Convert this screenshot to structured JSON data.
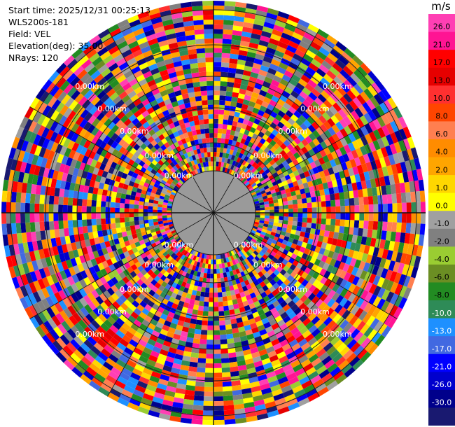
{
  "header": {
    "start_time": "Start time: 2025/12/31 00:25:13",
    "instrument": "WLS200s-181",
    "field": "Field: VEL",
    "elevation": "Elevation(deg): 35.00",
    "nrays": "NRays: 120"
  },
  "chart_data": {
    "type": "heatmap",
    "projection": "polar-ppi",
    "nrays": 120,
    "range_rings_km": [
      1,
      2,
      3,
      4,
      5
    ],
    "ring_label_text": "0.00km",
    "colorbar": {
      "unit": "m/s",
      "levels": [
        "26.0",
        "21.0",
        "17.0",
        "13.0",
        "10.0",
        "8.0",
        "6.0",
        "4.0",
        "2.0",
        "1.0",
        "0.0",
        "-1.0",
        "-2.0",
        "-4.0",
        "-6.0",
        "-8.0",
        "-10.0",
        "-13.0",
        "-17.0",
        "-21.0",
        "-26.0",
        "-30.0"
      ],
      "colors": [
        "#ff3fb4",
        "#ff1493",
        "#ff0000",
        "#e60000",
        "#ff3030",
        "#ff4500",
        "#ff7f50",
        "#ff8c00",
        "#ffa500",
        "#ffd700",
        "#ffff00",
        "#a0a0a0",
        "#808080",
        "#9acd32",
        "#6b8e23",
        "#228b22",
        "#2e8b57",
        "#1e90ff",
        "#4169e1",
        "#0000ff",
        "#0000cd",
        "#00008b",
        "#191970"
      ]
    }
  }
}
